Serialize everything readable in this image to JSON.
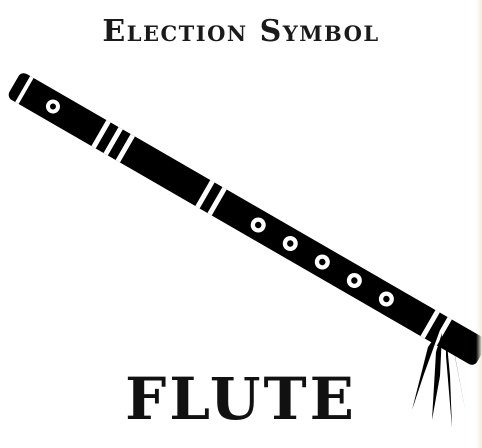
{
  "poster": {
    "heading": "Election Symbol",
    "caption": "FLUTE"
  },
  "art": {
    "symbol_icon": "flute-icon",
    "ink_color": "#000000",
    "background_color": "#ffffff"
  }
}
